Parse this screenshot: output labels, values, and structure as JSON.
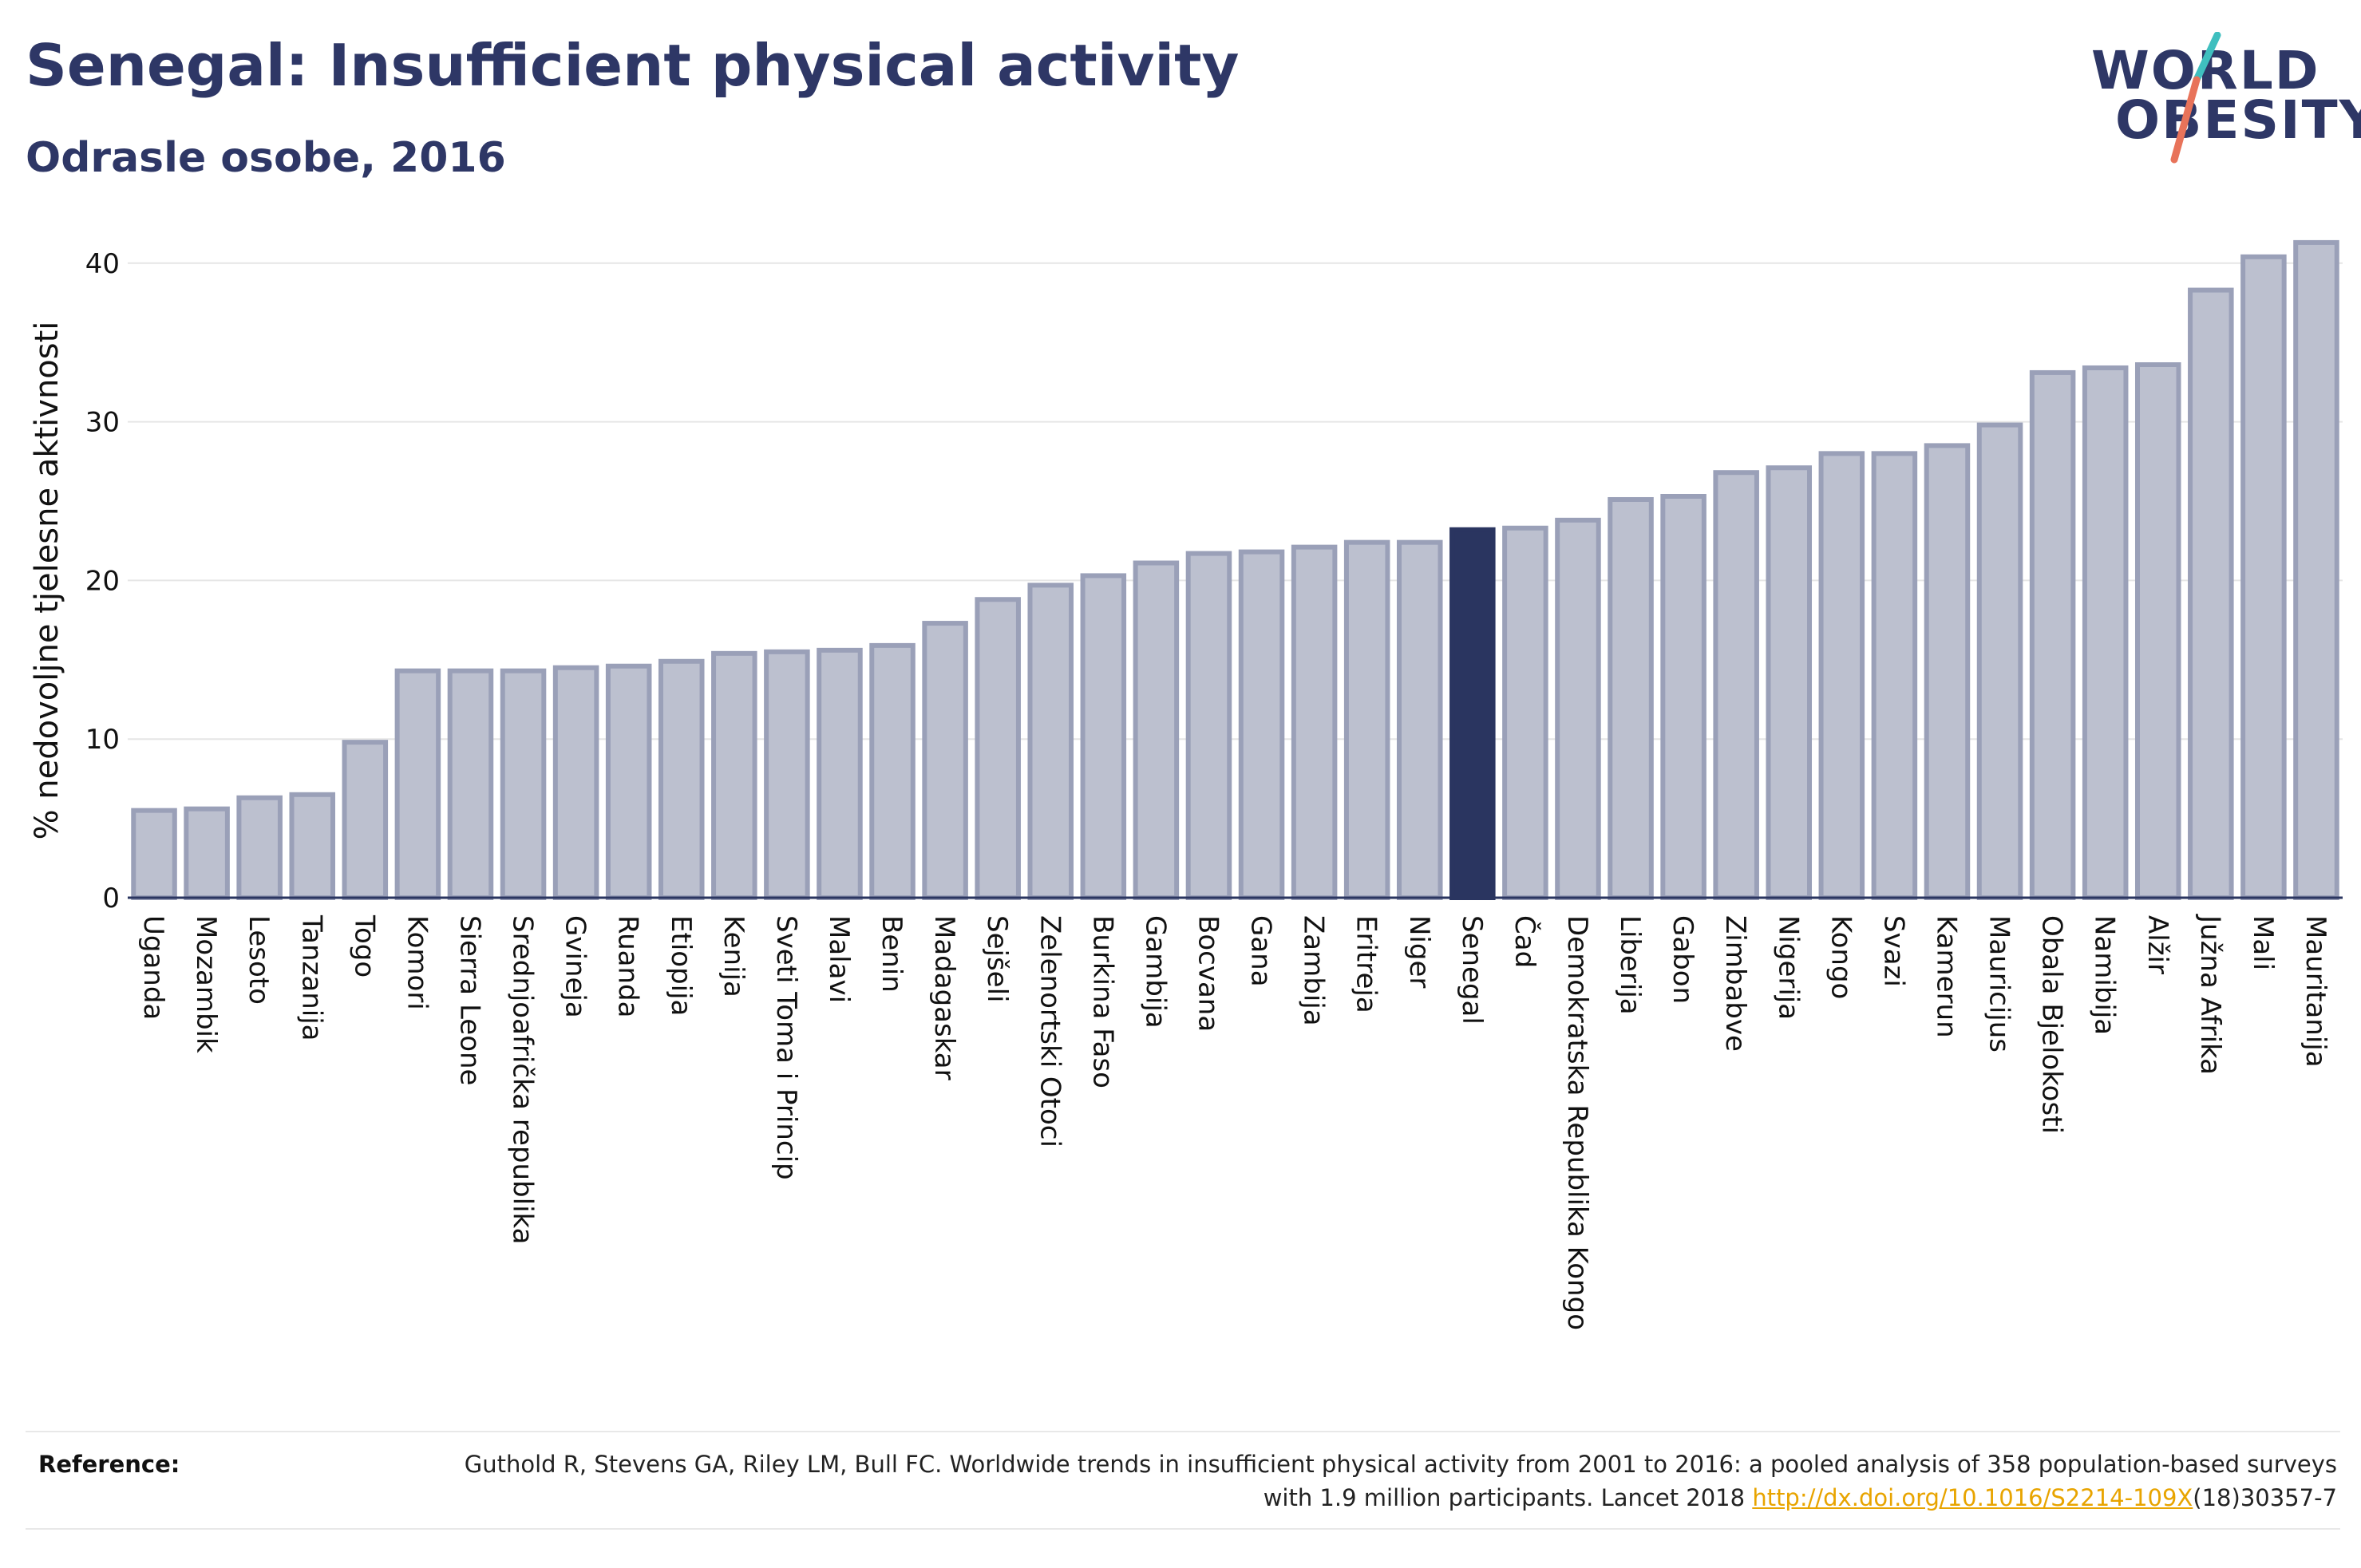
{
  "header": {
    "title": "Senegal: Insufficient physical activity",
    "subtitle": "Odrasle osobe, 2016"
  },
  "logo": {
    "line1": "WORLD",
    "line2": "OBESITY"
  },
  "colors": {
    "bar_fill": "#bcc0cf",
    "bar_stroke": "#9aa0b8",
    "highlight": "#2a3560",
    "text": "#2e3766",
    "logo_slash_teal": "#3fbfbf",
    "logo_slash_coral": "#e8735a",
    "link": "#e8a400"
  },
  "chart_data": {
    "type": "bar",
    "ylabel": "% nedovoljne tjelesne aktivnosti",
    "xlabel": "",
    "ylim": [
      0,
      42
    ],
    "yticks": [
      0,
      10,
      20,
      30,
      40
    ],
    "grid": true,
    "highlight_category": "Senegal",
    "categories": [
      "Uganda",
      "Mozambik",
      "Lesoto",
      "Tanzanija",
      "Togo",
      "Komori",
      "Sierra Leone",
      "Srednjoafrička republika",
      "Gvineja",
      "Ruanda",
      "Etiopija",
      "Kenija",
      "Sveti Toma i Princip",
      "Malavi",
      "Benin",
      "Madagaskar",
      "Sejšeli",
      "Zelenortski Otoci",
      "Burkina Faso",
      "Gambija",
      "Bocvana",
      "Gana",
      "Zambija",
      "Eritreja",
      "Niger",
      "Senegal",
      "Čad",
      "Demokratska Republika Kongo",
      "Liberija",
      "Gabon",
      "Zimbabve",
      "Nigerija",
      "Kongo",
      "Svazi",
      "Kamerun",
      "Mauricijus",
      "Obala Bjelokosti",
      "Namibija",
      "Alžir",
      "Južna Afrika",
      "Mali",
      "Mauritanija"
    ],
    "values": [
      5.5,
      5.6,
      6.3,
      6.5,
      9.8,
      14.3,
      14.3,
      14.3,
      14.5,
      14.6,
      14.9,
      15.4,
      15.5,
      15.6,
      15.9,
      17.3,
      18.8,
      19.7,
      20.3,
      21.1,
      21.7,
      21.8,
      22.1,
      22.4,
      22.4,
      23.2,
      23.3,
      23.8,
      25.1,
      25.3,
      26.8,
      27.1,
      28.0,
      28.0,
      28.5,
      29.8,
      33.1,
      33.4,
      33.6,
      38.3,
      40.4,
      41.3
    ]
  },
  "reference": {
    "label": "Reference:",
    "text_before_link": "Guthold R, Stevens GA, Riley LM, Bull FC. Worldwide trends in insufficient physical activity from 2001 to 2016: a pooled analysis of 358 population-based surveys with 1.9 million participants. Lancet 2018 ",
    "link_text": "http://dx.doi.org/10.1016/S2214-109X",
    "text_after_link": "(18)30357-7"
  }
}
